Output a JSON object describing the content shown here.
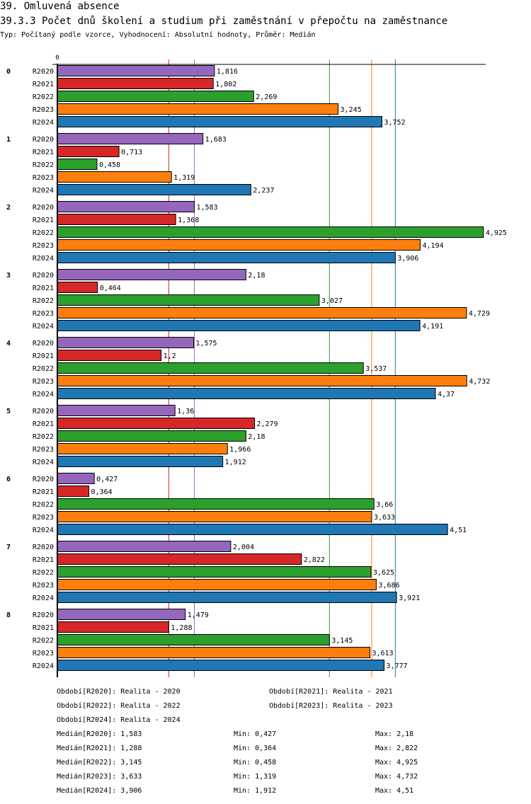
{
  "header": {
    "section_title": "39. Omluvená absence",
    "chart_title": "39.3.3 Počet dnů školení a studium při zaměstnání v přepočtu na zaměstnance",
    "subtitle": "Typ: Počítaný podle vzorce, Vyhodnocení: Absolutní hodnoty, Průměr: Medián"
  },
  "chart_data": {
    "type": "bar",
    "orientation": "horizontal",
    "title": "39.3.3 Počet dnů školení a studium při zaměstnání v přepočtu na zaměstnance",
    "xlabel": "",
    "ylabel": "",
    "xlim": [
      0,
      4.95
    ],
    "x_ticks": [
      "0"
    ],
    "grid": false,
    "legend": "bottom",
    "categories": [
      "0",
      "1",
      "2",
      "3",
      "4",
      "5",
      "6",
      "7",
      "8"
    ],
    "series": [
      {
        "name": "R2020",
        "color": "#9467bd",
        "values": [
          1.816,
          1.683,
          1.583,
          2.18,
          1.575,
          1.36,
          0.427,
          2.004,
          1.479
        ],
        "labels": [
          "1,816",
          "1,683",
          "1,583",
          "2,18",
          "1,575",
          "1,36",
          "0,427",
          "2,004",
          "1,479"
        ]
      },
      {
        "name": "R2021",
        "color": "#d62728",
        "values": [
          1.802,
          0.713,
          1.368,
          0.464,
          1.2,
          2.279,
          0.364,
          2.822,
          1.288
        ],
        "labels": [
          "1,802",
          "0,713",
          "1,368",
          "0,464",
          "1,2",
          "2,279",
          "0,364",
          "2,822",
          "1,288"
        ]
      },
      {
        "name": "R2022",
        "color": "#2ca02c",
        "values": [
          2.269,
          0.458,
          4.925,
          3.027,
          3.537,
          2.18,
          3.66,
          3.625,
          3.145
        ],
        "labels": [
          "2,269",
          "0,458",
          "4,925",
          "3,027",
          "3,537",
          "2,18",
          "3,66",
          "3,625",
          "3,145"
        ]
      },
      {
        "name": "R2023",
        "color": "#ff7f0e",
        "values": [
          3.245,
          1.319,
          4.194,
          4.729,
          4.732,
          1.966,
          3.633,
          3.686,
          3.613
        ],
        "labels": [
          "3,245",
          "1,319",
          "4,194",
          "4,729",
          "4,732",
          "1,966",
          "3,633",
          "3,686",
          "3,613"
        ]
      },
      {
        "name": "R2024",
        "color": "#1f77b4",
        "values": [
          3.752,
          2.237,
          3.906,
          4.191,
          4.37,
          1.912,
          4.51,
          3.921,
          3.777
        ],
        "labels": [
          "3,752",
          "2,237",
          "3,906",
          "4,191",
          "4,37",
          "1,912",
          "4,51",
          "3,921",
          "3,777"
        ]
      }
    ],
    "median_lines": [
      {
        "series": "R2020",
        "value": 1.583
      },
      {
        "series": "R2021",
        "value": 1.288
      },
      {
        "series": "R2022",
        "value": 3.145
      },
      {
        "series": "R2023",
        "value": 3.633
      },
      {
        "series": "R2024",
        "value": 3.906
      }
    ]
  },
  "legend": {
    "periods": [
      "Období[R2020]: Realita - 2020",
      "Období[R2021]: Realita - 2021",
      "Období[R2022]: Realita - 2022",
      "Období[R2023]: Realita - 2023",
      "Období[R2024]: Realita - 2024"
    ],
    "stats": [
      {
        "median": "Medián[R2020]: 1,583",
        "min": "Min: 0,427",
        "max": "Max: 2,18"
      },
      {
        "median": "Medián[R2021]: 1,288",
        "min": "Min: 0,364",
        "max": "Max: 2,822"
      },
      {
        "median": "Medián[R2022]: 3,145",
        "min": "Min: 0,458",
        "max": "Max: 4,925"
      },
      {
        "median": "Medián[R2023]: 3,633",
        "min": "Min: 1,319",
        "max": "Max: 4,732"
      },
      {
        "median": "Medián[R2024]: 3,906",
        "min": "Min: 1,912",
        "max": "Max: 4,51"
      }
    ]
  }
}
